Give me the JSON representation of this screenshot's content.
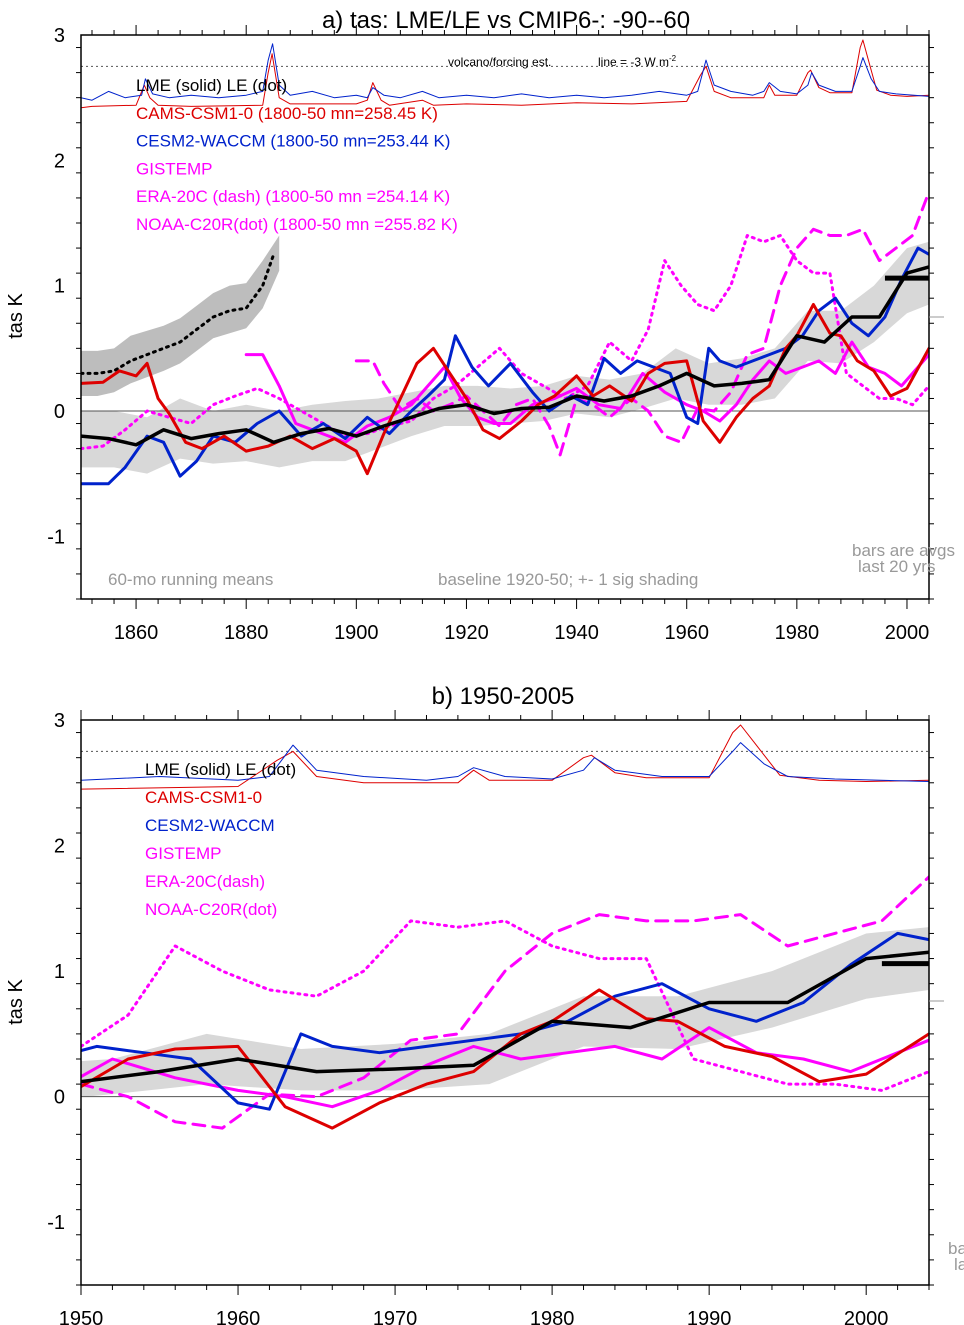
{
  "colors": {
    "LME": "#000000",
    "CAMS": "#dd0000",
    "CESM2": "#0022cc",
    "OBS": "#ff00ff",
    "shade": "#d8d8d8",
    "shade_dark": "#bdbdbd",
    "note": "#999999"
  },
  "panels": [
    {
      "title": "a) tas: LME/LE vs CMIP6-: -90--60",
      "ylabel": "tas K",
      "xlim": [
        1850,
        2004
      ],
      "ylim": [
        -1.5,
        3.0
      ],
      "xticks": [
        1860,
        1880,
        1900,
        1920,
        1940,
        1960,
        1980,
        2000
      ],
      "yticks": [
        -1,
        0,
        1,
        2,
        3
      ],
      "legend": [
        {
          "text": "LME (solid)    LE (dot)",
          "color": "#000000"
        },
        {
          "text": "CAMS-CSM1-0 (1800-50 mn=258.45 K)",
          "color": "#dd0000"
        },
        {
          "text": "CESM2-WACCM (1800-50 mn=253.44 K)",
          "color": "#0022cc"
        },
        {
          "text": "GISTEMP",
          "color": "#ff00ff"
        },
        {
          "text": "ERA-20C (dash) (1800-50 mn =254.14 K)",
          "color": "#ff00ff"
        },
        {
          "text": "NOAA-C20R(dot) (1800-50 mn =255.82 K)",
          "color": "#ff00ff"
        }
      ],
      "notes": {
        "volcano": "volcano/forcing est.",
        "line": "line = -3 W m",
        "line_sup": "-2",
        "running": "60-mo running means",
        "baseline": "baseline 1920-50; +- 1 sig shading",
        "bars1": "bars are avgs",
        "bars2": "last 20 yrs"
      }
    },
    {
      "title": "b) 1950-2005",
      "ylabel": "tas K",
      "xlim": [
        1950,
        2004
      ],
      "ylim": [
        -1.5,
        3.0
      ],
      "xticks": [
        1950,
        1960,
        1970,
        1980,
        1990,
        2000
      ],
      "yticks": [
        -1,
        0,
        1,
        2,
        3
      ],
      "legend": [
        {
          "text": "LME (solid)      LE (dot)",
          "color": "#000000"
        },
        {
          "text": "CAMS-CSM1-0",
          "color": "#dd0000"
        },
        {
          "text": "CESM2-WACCM",
          "color": "#0022cc"
        },
        {
          "text": "GISTEMP",
          "color": "#ff00ff"
        },
        {
          "text": "ERA-20C(dash)",
          "color": "#ff00ff"
        },
        {
          "text": "NOAA-C20R(dot)",
          "color": "#ff00ff"
        }
      ],
      "notes": {
        "bars1": "ba",
        "bars2": "la"
      }
    }
  ],
  "chart_data": {
    "type": "line",
    "volcano_dotted_line_y": 2.75,
    "bar_value": 1.06,
    "bar_years": [
      1996,
      2004
    ],
    "series": [
      {
        "name": "LME (solid)",
        "style": "solid",
        "x": [
          1850,
          1855,
          1860,
          1865,
          1870,
          1875,
          1880,
          1885,
          1890,
          1895,
          1900,
          1905,
          1910,
          1915,
          1920,
          1925,
          1930,
          1935,
          1940,
          1945,
          1950,
          1955,
          1960,
          1965,
          1970,
          1975,
          1980,
          1985,
          1990,
          1995,
          2000,
          2004
        ],
        "y": [
          -0.2,
          -0.22,
          -0.27,
          -0.15,
          -0.22,
          -0.18,
          -0.15,
          -0.25,
          -0.18,
          -0.14,
          -0.2,
          -0.12,
          -0.05,
          0.02,
          0.05,
          -0.02,
          0.02,
          0.03,
          0.12,
          0.08,
          0.12,
          0.2,
          0.3,
          0.2,
          0.22,
          0.25,
          0.6,
          0.55,
          0.75,
          0.75,
          1.1,
          1.15
        ]
      },
      {
        "name": "LE (dot)",
        "style": "dot",
        "x": [
          1850,
          1853,
          1856,
          1859,
          1862,
          1865,
          1868,
          1871,
          1874,
          1877,
          1880,
          1883,
          1885
        ],
        "y": [
          0.3,
          0.3,
          0.32,
          0.4,
          0.45,
          0.5,
          0.55,
          0.65,
          0.75,
          0.8,
          0.82,
          1.0,
          1.25
        ]
      },
      {
        "name": "CAMS-CSM1-0",
        "style": "solid",
        "x": [
          1850,
          1854,
          1857,
          1860,
          1862,
          1864,
          1866,
          1869,
          1872,
          1876,
          1880,
          1884,
          1888,
          1892,
          1896,
          1900,
          1902,
          1905,
          1908,
          1911,
          1914,
          1917,
          1920,
          1923,
          1926,
          1930,
          1933,
          1936,
          1940,
          1943,
          1946,
          1950,
          1953,
          1956,
          1960,
          1963,
          1966,
          1969,
          1972,
          1975,
          1978,
          1980,
          1983,
          1986,
          1988,
          1991,
          1994,
          1997,
          2000,
          2004
        ],
        "y": [
          0.22,
          0.23,
          0.32,
          0.28,
          0.38,
          0.1,
          -0.02,
          -0.25,
          -0.3,
          -0.2,
          -0.32,
          -0.28,
          -0.2,
          -0.3,
          -0.22,
          -0.32,
          -0.5,
          -0.18,
          0.1,
          0.38,
          0.5,
          0.3,
          0.1,
          -0.15,
          -0.22,
          -0.08,
          0.05,
          0.12,
          0.28,
          0.12,
          0.2,
          0.08,
          0.3,
          0.38,
          0.4,
          -0.08,
          -0.25,
          -0.05,
          0.1,
          0.2,
          0.5,
          0.6,
          0.85,
          0.62,
          0.6,
          0.4,
          0.32,
          0.12,
          0.18,
          0.5
        ]
      },
      {
        "name": "CESM2-WACCM",
        "style": "solid",
        "x": [
          1850,
          1855,
          1858,
          1862,
          1865,
          1868,
          1871,
          1874,
          1878,
          1882,
          1886,
          1890,
          1894,
          1898,
          1902,
          1906,
          1910,
          1913,
          1916,
          1918,
          1921,
          1924,
          1928,
          1932,
          1935,
          1939,
          1942,
          1945,
          1948,
          1951,
          1954,
          1957,
          1960,
          1962,
          1964,
          1966,
          1969,
          1972,
          1975,
          1978,
          1981,
          1984,
          1987,
          1990,
          1993,
          1996,
          1999,
          2002,
          2004
        ],
        "y": [
          -0.58,
          -0.58,
          -0.45,
          -0.2,
          -0.25,
          -0.52,
          -0.4,
          -0.2,
          -0.25,
          -0.1,
          0.0,
          -0.2,
          -0.1,
          -0.22,
          -0.05,
          -0.18,
          0.0,
          0.12,
          0.25,
          0.6,
          0.35,
          0.2,
          0.38,
          0.15,
          0.0,
          0.12,
          0.05,
          0.42,
          0.3,
          0.4,
          0.35,
          0.3,
          -0.05,
          -0.1,
          0.5,
          0.4,
          0.35,
          0.4,
          0.45,
          0.5,
          0.6,
          0.8,
          0.9,
          0.7,
          0.6,
          0.75,
          1.05,
          1.3,
          1.25
        ]
      },
      {
        "name": "GISTEMP",
        "style": "solid",
        "x": [
          1880,
          1883,
          1886,
          1889,
          1892,
          1895,
          1898,
          1902,
          1906,
          1910,
          1913,
          1916,
          1919,
          1922,
          1925,
          1928,
          1932,
          1936,
          1940,
          1944,
          1948,
          1952,
          1956,
          1960,
          1963,
          1966,
          1969,
          1972,
          1975,
          1978,
          1981,
          1984,
          1987,
          1990,
          1993,
          1996,
          1999,
          2002,
          2004
        ],
        "y": [
          0.45,
          0.45,
          0.2,
          -0.1,
          -0.15,
          -0.2,
          -0.25,
          -0.12,
          -0.05,
          0.05,
          0.2,
          0.35,
          0.1,
          -0.05,
          -0.1,
          -0.1,
          0.05,
          0.1,
          0.18,
          0.05,
          0.02,
          0.3,
          0.15,
          0.05,
          0.0,
          -0.08,
          0.05,
          0.25,
          0.4,
          0.3,
          0.35,
          0.4,
          0.3,
          0.55,
          0.35,
          0.3,
          0.2,
          0.35,
          0.45
        ]
      },
      {
        "name": "ERA-20C (dash)",
        "style": "dash",
        "x": [
          1900,
          1903,
          1905,
          1908,
          1911,
          1914,
          1917,
          1920,
          1923,
          1926,
          1929,
          1932,
          1935,
          1937,
          1940,
          1943,
          1946,
          1950,
          1953,
          1956,
          1959,
          1962,
          1965,
          1968,
          1971,
          1974,
          1977,
          1980,
          1983,
          1986,
          1989,
          1992,
          1995,
          1998,
          2001,
          2004
        ],
        "y": [
          0.4,
          0.4,
          0.22,
          0.02,
          0.1,
          0.0,
          0.05,
          0.12,
          0.0,
          -0.12,
          0.05,
          0.1,
          -0.12,
          -0.35,
          0.1,
          0.05,
          -0.05,
          0.1,
          0.0,
          -0.2,
          -0.25,
          0.02,
          0.0,
          0.15,
          0.45,
          0.5,
          1.0,
          1.3,
          1.45,
          1.4,
          1.4,
          1.45,
          1.2,
          1.3,
          1.4,
          1.75
        ]
      },
      {
        "name": "NOAA-C20R(dot)",
        "style": "dot",
        "x": [
          1850,
          1854,
          1858,
          1862,
          1866,
          1870,
          1874,
          1878,
          1882,
          1886,
          1890,
          1894,
          1898,
          1902,
          1906,
          1910,
          1914,
          1918,
          1922,
          1926,
          1930,
          1934,
          1938,
          1942,
          1946,
          1950,
          1953,
          1956,
          1959,
          1962,
          1965,
          1968,
          1971,
          1974,
          1977,
          1980,
          1983,
          1986,
          1989,
          1992,
          1995,
          1998,
          2001,
          2004
        ],
        "y": [
          -0.3,
          -0.28,
          -0.15,
          0.0,
          -0.05,
          -0.1,
          0.05,
          0.12,
          0.18,
          0.1,
          0.0,
          -0.1,
          -0.2,
          -0.18,
          -0.12,
          -0.08,
          0.1,
          0.2,
          0.35,
          0.5,
          0.3,
          0.2,
          0.1,
          0.2,
          0.55,
          0.4,
          0.65,
          1.2,
          1.0,
          0.85,
          0.8,
          1.0,
          1.4,
          1.35,
          1.4,
          1.2,
          1.1,
          1.1,
          0.3,
          0.2,
          0.1,
          0.1,
          0.05,
          0.2
        ]
      },
      {
        "name": "CAMS-CSM1-0 forcing",
        "style": "thin",
        "x": [
          1850,
          1852,
          1860,
          1861.5,
          1862.5,
          1864,
          1870,
          1883,
          1884,
          1884.7,
          1886,
          1888,
          1900,
          1902,
          1903,
          1904.5,
          1906,
          1912,
          1914,
          1920,
          1930,
          1940,
          1950,
          1960,
          1962.5,
          1963.5,
          1965,
          1968,
          1974,
          1975,
          1976,
          1980,
          1982,
          1982.5,
          1984,
          1986,
          1990,
          1991.5,
          1992,
          1993,
          1994.5,
          1997,
          2000,
          2004
        ],
        "y": [
          2.42,
          2.43,
          2.44,
          2.6,
          2.5,
          2.44,
          2.43,
          2.44,
          2.7,
          2.85,
          2.5,
          2.45,
          2.45,
          2.48,
          2.62,
          2.48,
          2.44,
          2.48,
          2.44,
          2.45,
          2.44,
          2.46,
          2.45,
          2.47,
          2.68,
          2.75,
          2.55,
          2.5,
          2.5,
          2.6,
          2.52,
          2.52,
          2.7,
          2.72,
          2.58,
          2.54,
          2.54,
          2.9,
          2.96,
          2.8,
          2.56,
          2.52,
          2.51,
          2.52
        ]
      },
      {
        "name": "CESM2-WACCM forcing",
        "style": "thin",
        "x": [
          1850,
          1852,
          1855,
          1858,
          1861,
          1861.7,
          1863,
          1866,
          1870,
          1875,
          1880,
          1883,
          1884,
          1884.8,
          1886,
          1888,
          1892,
          1896,
          1900,
          1902,
          1903,
          1905,
          1908,
          1912,
          1915,
          1920,
          1925,
          1930,
          1935,
          1940,
          1945,
          1950,
          1955,
          1960,
          1962,
          1963.5,
          1965,
          1968,
          1972,
          1974,
          1975,
          1977,
          1980,
          1982,
          1982.7,
          1984,
          1987,
          1990,
          1991.5,
          1992,
          1993.5,
          1995,
          1998,
          2004
        ],
        "y": [
          2.5,
          2.48,
          2.55,
          2.5,
          2.52,
          2.65,
          2.53,
          2.5,
          2.52,
          2.5,
          2.52,
          2.55,
          2.8,
          2.93,
          2.6,
          2.52,
          2.55,
          2.5,
          2.52,
          2.5,
          2.58,
          2.52,
          2.5,
          2.55,
          2.5,
          2.52,
          2.5,
          2.53,
          2.5,
          2.52,
          2.5,
          2.52,
          2.55,
          2.52,
          2.55,
          2.8,
          2.6,
          2.55,
          2.52,
          2.55,
          2.62,
          2.55,
          2.53,
          2.6,
          2.7,
          2.6,
          2.55,
          2.55,
          2.75,
          2.82,
          2.65,
          2.55,
          2.53,
          2.51
        ]
      }
    ],
    "shading": [
      {
        "name": "LME +- 1 sig",
        "x": [
          1850,
          1856,
          1862,
          1868,
          1874,
          1880,
          1886,
          1892,
          1898,
          1904,
          1910,
          1916,
          1922,
          1928,
          1934,
          1940,
          1946,
          1952,
          1958,
          1964,
          1970,
          1976,
          1982,
          1988,
          1994,
          2000,
          2004
        ],
        "lo": [
          -0.45,
          -0.45,
          -0.5,
          -0.38,
          -0.42,
          -0.4,
          -0.45,
          -0.4,
          -0.4,
          -0.3,
          -0.2,
          -0.12,
          -0.12,
          -0.1,
          -0.08,
          -0.02,
          -0.05,
          0.02,
          0.1,
          0.05,
          0.05,
          0.1,
          0.4,
          0.38,
          0.55,
          0.78,
          0.85
        ],
        "hi": [
          0.0,
          0.0,
          -0.05,
          0.1,
          0.0,
          0.05,
          0.0,
          0.05,
          0.08,
          0.1,
          0.15,
          0.2,
          0.2,
          0.18,
          0.2,
          0.28,
          0.25,
          0.3,
          0.5,
          0.38,
          0.42,
          0.5,
          0.8,
          0.8,
          1.0,
          1.3,
          1.35
        ]
      },
      {
        "name": "LE +- 1 sig",
        "x": [
          1850,
          1853,
          1856,
          1859,
          1862,
          1865,
          1868,
          1871,
          1874,
          1877,
          1880,
          1883,
          1886
        ],
        "lo": [
          0.12,
          0.12,
          0.15,
          0.22,
          0.27,
          0.32,
          0.38,
          0.48,
          0.58,
          0.62,
          0.66,
          0.82,
          1.12
        ],
        "hi": [
          0.48,
          0.48,
          0.5,
          0.6,
          0.64,
          0.68,
          0.74,
          0.84,
          0.94,
          1.0,
          1.02,
          1.2,
          1.4
        ]
      }
    ]
  }
}
